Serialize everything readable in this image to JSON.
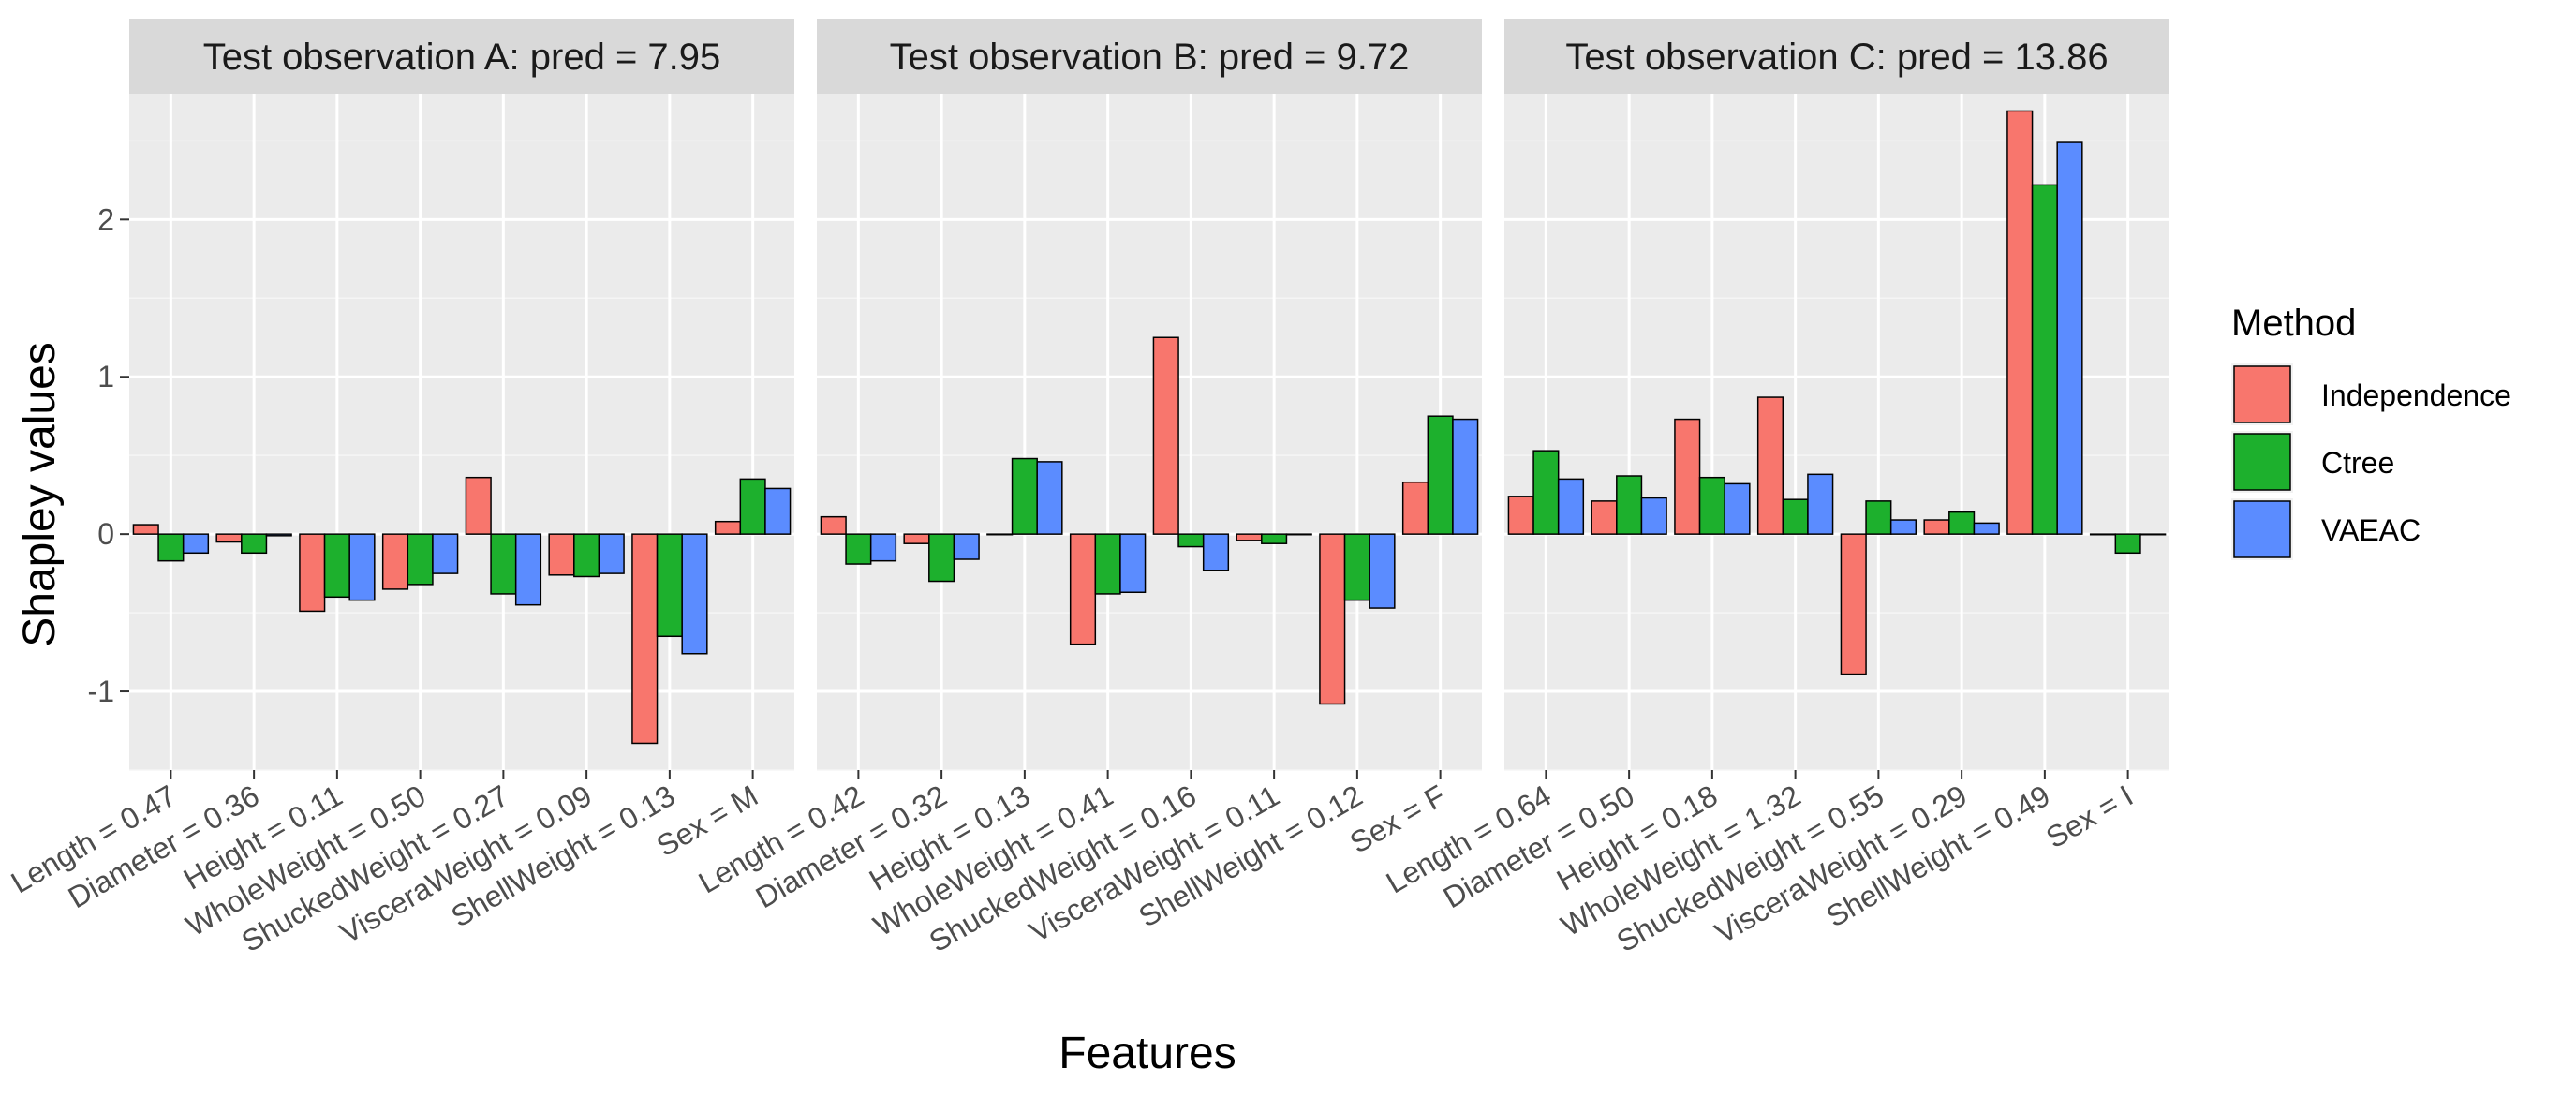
{
  "chart_data": {
    "type": "bar",
    "ylabel": "Shapley values",
    "xlabel": "Features",
    "ylim": [
      -1.5,
      2.8
    ],
    "yticks": [
      -1,
      0,
      1,
      2
    ],
    "ytick_labels": [
      "-1",
      "0",
      "1",
      "2"
    ],
    "legend": {
      "title": "Method",
      "position": "right",
      "items": [
        {
          "name": "Independence",
          "color": "#F8766D"
        },
        {
          "name": "Ctree",
          "color": "#1DB02D"
        },
        {
          "name": "VAEAC",
          "color": "#5B8CFF"
        }
      ]
    },
    "panels": [
      {
        "title": "Test observation A: pred = 7.95",
        "categories": [
          "Length = 0.47",
          "Diameter = 0.36",
          "Height = 0.11",
          "WholeWeight = 0.50",
          "ShuckedWeight = 0.27",
          "VisceraWeight = 0.09",
          "ShellWeight = 0.13",
          "Sex = M"
        ],
        "series": [
          {
            "name": "Independence",
            "values": [
              0.06,
              -0.05,
              -0.49,
              -0.35,
              0.36,
              -0.26,
              -1.33,
              0.08
            ]
          },
          {
            "name": "Ctree",
            "values": [
              -0.17,
              -0.12,
              -0.4,
              -0.32,
              -0.38,
              -0.27,
              -0.65,
              0.35
            ]
          },
          {
            "name": "VAEAC",
            "values": [
              -0.12,
              -0.01,
              -0.42,
              -0.25,
              -0.45,
              -0.25,
              -0.76,
              0.29
            ]
          }
        ]
      },
      {
        "title": "Test observation B: pred = 9.72",
        "categories": [
          "Length = 0.42",
          "Diameter = 0.32",
          "Height = 0.13",
          "WholeWeight = 0.41",
          "ShuckedWeight = 0.16",
          "VisceraWeight = 0.11",
          "ShellWeight = 0.12",
          "Sex = F"
        ],
        "series": [
          {
            "name": "Independence",
            "values": [
              0.11,
              -0.06,
              0.0,
              -0.7,
              1.25,
              -0.04,
              -1.08,
              0.33
            ]
          },
          {
            "name": "Ctree",
            "values": [
              -0.19,
              -0.3,
              0.48,
              -0.38,
              -0.08,
              -0.06,
              -0.42,
              0.75
            ]
          },
          {
            "name": "VAEAC",
            "values": [
              -0.17,
              -0.16,
              0.46,
              -0.37,
              -0.23,
              0.0,
              -0.47,
              0.73
            ]
          }
        ]
      },
      {
        "title": "Test observation C: pred = 13.86",
        "categories": [
          "Length = 0.64",
          "Diameter = 0.50",
          "Height = 0.18",
          "WholeWeight = 1.32",
          "ShuckedWeight = 0.55",
          "VisceraWeight = 0.29",
          "ShellWeight = 0.49",
          "Sex = I"
        ],
        "series": [
          {
            "name": "Independence",
            "values": [
              0.24,
              0.21,
              0.73,
              0.87,
              -0.89,
              0.09,
              2.69,
              0.0
            ]
          },
          {
            "name": "Ctree",
            "values": [
              0.53,
              0.37,
              0.36,
              0.22,
              0.21,
              0.14,
              2.22,
              -0.12
            ]
          },
          {
            "name": "VAEAC",
            "values": [
              0.35,
              0.23,
              0.32,
              0.38,
              0.09,
              0.07,
              2.49,
              0.0
            ]
          }
        ]
      }
    ]
  }
}
